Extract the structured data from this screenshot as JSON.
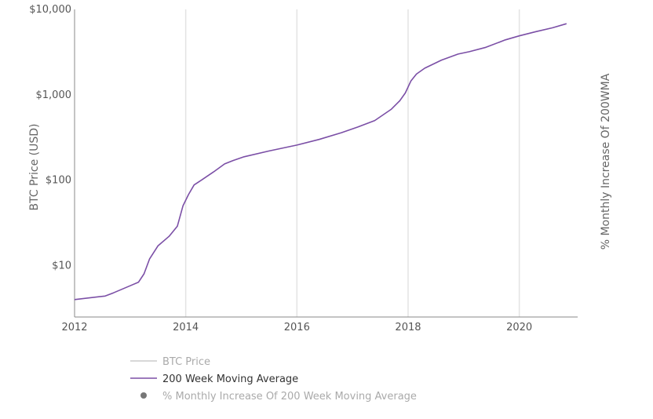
{
  "chart_data": {
    "type": "line",
    "title": "",
    "xlabel": "",
    "ylabel": "BTC Price (USD)",
    "y2label": "% Monthly Increase Of 200WMA",
    "y_scale": "log",
    "ylim": [
      2.5,
      10000
    ],
    "xlim": [
      2012,
      2021.05
    ],
    "grid": {
      "x": true,
      "y": false
    },
    "x_ticks": [
      {
        "value": 2012,
        "label": "2012"
      },
      {
        "value": 2014,
        "label": "2014"
      },
      {
        "value": 2016,
        "label": "2016"
      },
      {
        "value": 2018,
        "label": "2018"
      },
      {
        "value": 2020,
        "label": "2020"
      }
    ],
    "y_ticks": [
      {
        "value": 10,
        "label": "$10"
      },
      {
        "value": 100,
        "label": "$100"
      },
      {
        "value": 1000,
        "label": "$1,000"
      },
      {
        "value": 10000,
        "label": "$10,000"
      }
    ],
    "legend_position": "bottom",
    "series": [
      {
        "name": "BTC Price",
        "color": "#cccccc",
        "visible": false,
        "points": []
      },
      {
        "name": "200 Week Moving Average",
        "color": "#7b4fa6",
        "visible": true,
        "points": [
          [
            2012.0,
            4.0
          ],
          [
            2012.55,
            4.4
          ],
          [
            2012.7,
            4.8
          ],
          [
            2013.0,
            5.8
          ],
          [
            2013.15,
            6.4
          ],
          [
            2013.25,
            8.0
          ],
          [
            2013.35,
            12.0
          ],
          [
            2013.5,
            17.0
          ],
          [
            2013.7,
            22.0
          ],
          [
            2013.85,
            29.0
          ],
          [
            2013.95,
            50.0
          ],
          [
            2014.05,
            68.0
          ],
          [
            2014.15,
            88.0
          ],
          [
            2014.3,
            102.0
          ],
          [
            2014.5,
            125.0
          ],
          [
            2014.7,
            155.0
          ],
          [
            2014.85,
            170.0
          ],
          [
            2015.05,
            188.0
          ],
          [
            2015.5,
            220.0
          ],
          [
            2016.0,
            258.0
          ],
          [
            2016.4,
            300.0
          ],
          [
            2016.8,
            360.0
          ],
          [
            2017.1,
            420.0
          ],
          [
            2017.4,
            500.0
          ],
          [
            2017.7,
            680.0
          ],
          [
            2017.85,
            850.0
          ],
          [
            2017.95,
            1050.0
          ],
          [
            2018.05,
            1450.0
          ],
          [
            2018.15,
            1750.0
          ],
          [
            2018.3,
            2050.0
          ],
          [
            2018.6,
            2550.0
          ],
          [
            2018.9,
            3000.0
          ],
          [
            2019.1,
            3200.0
          ],
          [
            2019.4,
            3600.0
          ],
          [
            2019.75,
            4400.0
          ],
          [
            2020.0,
            4900.0
          ],
          [
            2020.3,
            5500.0
          ],
          [
            2020.6,
            6100.0
          ],
          [
            2020.85,
            6800.0
          ]
        ]
      },
      {
        "name": "% Monthly Increase Of 200 Week Moving Average",
        "color": "#888888",
        "visible": false,
        "points": []
      }
    ]
  },
  "legend": [
    {
      "label": "BTC Price",
      "color": "#cccccc",
      "text_color": "#aaaaaa",
      "symbol": "line"
    },
    {
      "label": "200 Week Moving Average",
      "color": "#7b4fa6",
      "text_color": "#333333",
      "symbol": "line"
    },
    {
      "label": "% Monthly Increase Of 200 Week Moving Average",
      "color": "#777777",
      "text_color": "#aaaaaa",
      "symbol": "dot"
    }
  ]
}
